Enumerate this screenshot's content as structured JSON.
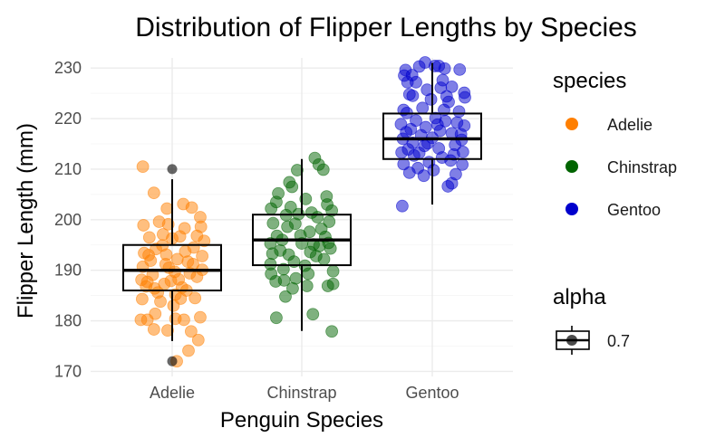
{
  "chart_data": {
    "type": "scatter",
    "subtype": "jitter points with boxplot overlay",
    "title": "Distribution of Flipper Lengths by Species",
    "xlabel": "Penguin Species",
    "ylabel": "Flipper Length (mm)",
    "categories": [
      "Adelie",
      "Chinstrap",
      "Gentoo"
    ],
    "ylim": [
      169,
      232
    ],
    "y_ticks": [
      170,
      180,
      190,
      200,
      210,
      220,
      230
    ],
    "grid": true,
    "legend": {
      "placement": "right",
      "color_title": "species",
      "alpha_title": "alpha",
      "alpha_value": "0.7"
    },
    "series": [
      {
        "name": "Adelie",
        "color": "#FF7F00",
        "box": {
          "min": 176,
          "q1": 186,
          "median": 190,
          "q3": 195,
          "max": 208,
          "outliers": [
            210,
            172
          ]
        },
        "points": [
          {
            "x": -0.45,
            "y": 210.5
          },
          {
            "x": -0.28,
            "y": 205.3
          },
          {
            "x": 0.17,
            "y": 203.1
          },
          {
            "x": -0.08,
            "y": 202.2
          },
          {
            "x": 0.3,
            "y": 202.4
          },
          {
            "x": 0.43,
            "y": 200.5
          },
          {
            "x": -0.44,
            "y": 198.9
          },
          {
            "x": -0.2,
            "y": 199.6
          },
          {
            "x": 0.44,
            "y": 198.6
          },
          {
            "x": -0.35,
            "y": 196.5
          },
          {
            "x": 0.38,
            "y": 196.8
          },
          {
            "x": 0.49,
            "y": 195.8
          },
          {
            "x": -0.43,
            "y": 193.4
          },
          {
            "x": 0.46,
            "y": 192.8
          },
          {
            "x": -0.45,
            "y": 190.7
          },
          {
            "x": 0.46,
            "y": 190.1
          },
          {
            "x": -0.47,
            "y": 188.1
          },
          {
            "x": -0.4,
            "y": 186.8
          },
          {
            "x": 0.38,
            "y": 188.7
          },
          {
            "x": -0.46,
            "y": 184.3
          },
          {
            "x": 0.35,
            "y": 184.5
          },
          {
            "x": -0.48,
            "y": 180.2
          },
          {
            "x": -0.38,
            "y": 180.2
          },
          {
            "x": -0.26,
            "y": 181.4
          },
          {
            "x": -0.28,
            "y": 178.3
          },
          {
            "x": -0.07,
            "y": 178.1
          },
          {
            "x": 0.05,
            "y": 180.4
          },
          {
            "x": 0.18,
            "y": 180.2
          },
          {
            "x": 0.43,
            "y": 180.7
          },
          {
            "x": 0.29,
            "y": 177.9
          },
          {
            "x": 0.4,
            "y": 176.2
          },
          {
            "x": 0.25,
            "y": 174.1
          },
          {
            "x": 0.07,
            "y": 172.0
          },
          {
            "x": 0.05,
            "y": 185.2
          },
          {
            "x": -0.3,
            "y": 189.1
          },
          {
            "x": -0.1,
            "y": 191.2
          },
          {
            "x": 0.1,
            "y": 188.2
          },
          {
            "x": 0.2,
            "y": 193.7
          },
          {
            "x": -0.15,
            "y": 194.9
          },
          {
            "x": 0.0,
            "y": 196.3
          },
          {
            "x": -0.05,
            "y": 190.5
          },
          {
            "x": 0.15,
            "y": 186.6
          },
          {
            "x": -0.22,
            "y": 185.6
          },
          {
            "x": 0.27,
            "y": 189.4
          },
          {
            "x": -0.12,
            "y": 187.3
          },
          {
            "x": 0.08,
            "y": 192.2
          },
          {
            "x": -0.02,
            "y": 187.9
          },
          {
            "x": -0.33,
            "y": 191.9
          },
          {
            "x": 0.32,
            "y": 191.2
          },
          {
            "x": -0.25,
            "y": 194.2
          },
          {
            "x": 0.12,
            "y": 196.7
          },
          {
            "x": -0.38,
            "y": 187.7
          },
          {
            "x": 0.22,
            "y": 186.0
          },
          {
            "x": -0.18,
            "y": 183.8
          },
          {
            "x": 0.02,
            "y": 183.0
          },
          {
            "x": -0.09,
            "y": 193.1
          },
          {
            "x": 0.04,
            "y": 189.7
          },
          {
            "x": 0.24,
            "y": 191.7
          },
          {
            "x": -0.27,
            "y": 186.4
          },
          {
            "x": 0.13,
            "y": 184.4
          },
          {
            "x": -0.14,
            "y": 197.1
          },
          {
            "x": 0.19,
            "y": 198.3
          },
          {
            "x": -0.06,
            "y": 199.1
          },
          {
            "x": 0.33,
            "y": 194.5
          },
          {
            "x": -0.36,
            "y": 193.0
          }
        ]
      },
      {
        "name": "Chinstrap",
        "color": "#006400",
        "box": {
          "min": 178,
          "q1": 191,
          "median": 196,
          "q3": 201,
          "max": 212,
          "outliers": []
        },
        "points": [
          {
            "x": 0.2,
            "y": 212.2
          },
          {
            "x": 0.26,
            "y": 210.9
          },
          {
            "x": 0.33,
            "y": 209.9
          },
          {
            "x": -0.07,
            "y": 209.8
          },
          {
            "x": -0.19,
            "y": 207.4
          },
          {
            "x": -0.15,
            "y": 206.5
          },
          {
            "x": -0.36,
            "y": 205.2
          },
          {
            "x": 0.38,
            "y": 204.6
          },
          {
            "x": -0.39,
            "y": 203.5
          },
          {
            "x": 0.39,
            "y": 203.0
          },
          {
            "x": -0.47,
            "y": 202.2
          },
          {
            "x": 0.46,
            "y": 201.8
          },
          {
            "x": -0.44,
            "y": 199.3
          },
          {
            "x": 0.42,
            "y": 199.6
          },
          {
            "x": -0.48,
            "y": 195.3
          },
          {
            "x": 0.41,
            "y": 195.4
          },
          {
            "x": -0.45,
            "y": 193.3
          },
          {
            "x": 0.44,
            "y": 194.3
          },
          {
            "x": -0.48,
            "y": 191.2
          },
          {
            "x": -0.47,
            "y": 189.3
          },
          {
            "x": 0.48,
            "y": 189.8
          },
          {
            "x": -0.4,
            "y": 187.8
          },
          {
            "x": -0.27,
            "y": 188.0
          },
          {
            "x": -0.14,
            "y": 186.4
          },
          {
            "x": -0.25,
            "y": 184.8
          },
          {
            "x": 0.08,
            "y": 186.9
          },
          {
            "x": 0.4,
            "y": 186.9
          },
          {
            "x": 0.48,
            "y": 187.3
          },
          {
            "x": -0.39,
            "y": 180.6
          },
          {
            "x": 0.17,
            "y": 181.3
          },
          {
            "x": 0.46,
            "y": 177.9
          },
          {
            "x": -0.2,
            "y": 193.1
          },
          {
            "x": 0.0,
            "y": 195.3
          },
          {
            "x": 0.12,
            "y": 197.6
          },
          {
            "x": -0.1,
            "y": 199.2
          },
          {
            "x": 0.22,
            "y": 192.8
          },
          {
            "x": -0.3,
            "y": 196.0
          },
          {
            "x": 0.3,
            "y": 198.2
          },
          {
            "x": 0.05,
            "y": 190.9
          },
          {
            "x": -0.05,
            "y": 201.1
          },
          {
            "x": 0.15,
            "y": 201.4
          },
          {
            "x": -0.22,
            "y": 198.6
          },
          {
            "x": 0.27,
            "y": 194.8
          },
          {
            "x": -0.12,
            "y": 191.7
          },
          {
            "x": 0.1,
            "y": 189.3
          },
          {
            "x": -0.33,
            "y": 193.9
          },
          {
            "x": 0.34,
            "y": 192.2
          },
          {
            "x": -0.02,
            "y": 196.9
          },
          {
            "x": 0.18,
            "y": 195.1
          },
          {
            "x": -0.28,
            "y": 190.2
          },
          {
            "x": 0.24,
            "y": 200.5
          },
          {
            "x": -0.09,
            "y": 188.4
          },
          {
            "x": 0.06,
            "y": 204.1
          },
          {
            "x": -0.17,
            "y": 202.5
          },
          {
            "x": 0.36,
            "y": 196.6
          },
          {
            "x": -0.38,
            "y": 196.8
          },
          {
            "x": 0.13,
            "y": 193.6
          },
          {
            "x": -0.24,
            "y": 200.9
          }
        ]
      },
      {
        "name": "Gentoo",
        "color": "#0000CD",
        "box": {
          "min": 203,
          "q1": 212,
          "median": 216,
          "q3": 221,
          "max": 231,
          "outliers": []
        },
        "points": [
          {
            "x": -0.11,
            "y": 231.1
          },
          {
            "x": -0.2,
            "y": 230.3
          },
          {
            "x": 0.04,
            "y": 230.4
          },
          {
            "x": 0.1,
            "y": 230.4
          },
          {
            "x": 0.19,
            "y": 229.9
          },
          {
            "x": 0.42,
            "y": 229.7
          },
          {
            "x": -0.41,
            "y": 229.6
          },
          {
            "x": -0.43,
            "y": 228.5
          },
          {
            "x": -0.38,
            "y": 227.2
          },
          {
            "x": -0.31,
            "y": 228.6
          },
          {
            "x": -0.25,
            "y": 227.2
          },
          {
            "x": 0.16,
            "y": 227.6
          },
          {
            "x": 0.3,
            "y": 226.3
          },
          {
            "x": -0.35,
            "y": 224.8
          },
          {
            "x": -0.3,
            "y": 224.5
          },
          {
            "x": 0.49,
            "y": 225.1
          },
          {
            "x": 0.5,
            "y": 224.2
          },
          {
            "x": 0.22,
            "y": 224.4
          },
          {
            "x": -0.44,
            "y": 221.7
          },
          {
            "x": -0.39,
            "y": 221.1
          },
          {
            "x": 0.41,
            "y": 221.4
          },
          {
            "x": -0.48,
            "y": 218.9
          },
          {
            "x": 0.49,
            "y": 218.6
          },
          {
            "x": -0.45,
            "y": 216.0
          },
          {
            "x": 0.45,
            "y": 215.8
          },
          {
            "x": -0.47,
            "y": 213.3
          },
          {
            "x": 0.47,
            "y": 213.4
          },
          {
            "x": -0.44,
            "y": 211.0
          },
          {
            "x": 0.46,
            "y": 210.9
          },
          {
            "x": -0.35,
            "y": 209.3
          },
          {
            "x": 0.36,
            "y": 209.0
          },
          {
            "x": -0.13,
            "y": 208.7
          },
          {
            "x": 0.3,
            "y": 207.2
          },
          {
            "x": 0.24,
            "y": 206.6
          },
          {
            "x": -0.46,
            "y": 202.7
          },
          {
            "x": 0.0,
            "y": 216.2
          },
          {
            "x": 0.1,
            "y": 214.1
          },
          {
            "x": -0.1,
            "y": 218.3
          },
          {
            "x": 0.2,
            "y": 219.5
          },
          {
            "x": -0.2,
            "y": 213.2
          },
          {
            "x": 0.3,
            "y": 217.1
          },
          {
            "x": -0.3,
            "y": 215.2
          },
          {
            "x": 0.05,
            "y": 220.1
          },
          {
            "x": -0.05,
            "y": 211.4
          },
          {
            "x": 0.15,
            "y": 212.3
          },
          {
            "x": -0.15,
            "y": 222.1
          },
          {
            "x": 0.25,
            "y": 223.3
          },
          {
            "x": -0.25,
            "y": 219.6
          },
          {
            "x": 0.35,
            "y": 214.8
          },
          {
            "x": -0.33,
            "y": 217.9
          },
          {
            "x": 0.12,
            "y": 217.6
          },
          {
            "x": -0.07,
            "y": 215.1
          },
          {
            "x": 0.02,
            "y": 209.8
          },
          {
            "x": -0.22,
            "y": 210.2
          },
          {
            "x": 0.28,
            "y": 211.7
          },
          {
            "x": -0.17,
            "y": 216.7
          },
          {
            "x": 0.18,
            "y": 221.7
          },
          {
            "x": -0.02,
            "y": 223.8
          },
          {
            "x": 0.38,
            "y": 219.2
          },
          {
            "x": -0.28,
            "y": 212.7
          },
          {
            "x": 0.08,
            "y": 218.8
          },
          {
            "x": -0.12,
            "y": 214.6
          },
          {
            "x": 0.33,
            "y": 212.9
          },
          {
            "x": -0.37,
            "y": 213.9
          },
          {
            "x": 0.44,
            "y": 216.9
          },
          {
            "x": -0.4,
            "y": 217.3
          },
          {
            "x": 0.13,
            "y": 226.1
          },
          {
            "x": -0.08,
            "y": 225.7
          }
        ]
      }
    ]
  }
}
